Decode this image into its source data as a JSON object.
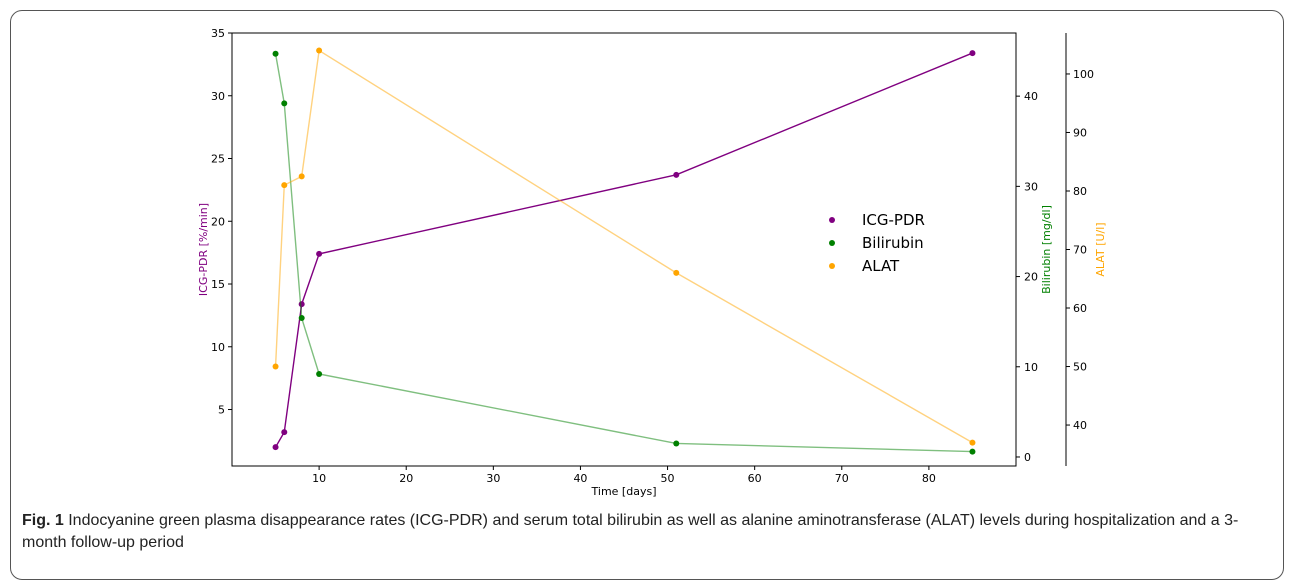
{
  "chart_data": {
    "type": "line",
    "xlabel": "Time [days]",
    "x_ticks": [
      10,
      20,
      30,
      40,
      50,
      60,
      70,
      80
    ],
    "xlim": [
      0,
      90
    ],
    "axes": {
      "left": {
        "label": "ICG-PDR [%/min]",
        "color": "#800080",
        "ylim": [
          0.5,
          35
        ],
        "ticks": [
          5,
          10,
          15,
          20,
          25,
          30,
          35
        ]
      },
      "right1": {
        "label": "Bilirubin [mg/dl]",
        "color": "#008000",
        "ylim": [
          -1,
          47
        ],
        "ticks": [
          0,
          10,
          20,
          30,
          40
        ]
      },
      "right2": {
        "label": "ALAT [U/l]",
        "color": "#FFA500",
        "ylim": [
          33,
          107
        ],
        "ticks": [
          40,
          50,
          60,
          70,
          80,
          90,
          100
        ]
      }
    },
    "series": [
      {
        "name": "ICG-PDR",
        "axis": "left",
        "color": "#800080",
        "line_alpha": 1.0,
        "x": [
          5,
          6,
          8,
          10,
          51,
          85
        ],
        "y": [
          2.0,
          3.2,
          13.4,
          17.4,
          23.7,
          33.4
        ]
      },
      {
        "name": "Bilirubin",
        "axis": "right1",
        "color": "#008000",
        "line_alpha": 0.5,
        "x": [
          5,
          6,
          8,
          10,
          51,
          85
        ],
        "y": [
          44.7,
          39.2,
          15.4,
          9.2,
          1.5,
          0.6
        ]
      },
      {
        "name": "ALAT",
        "axis": "right2",
        "color": "#FFA500",
        "line_alpha": 0.5,
        "x": [
          5,
          6,
          8,
          10,
          51,
          85
        ],
        "y": [
          50.0,
          81.0,
          82.5,
          104.0,
          66.0,
          37.0
        ]
      }
    ],
    "legend_placement": "center-right",
    "grid": false
  },
  "caption": {
    "label": "Fig. 1",
    "text": " Indocyanine green plasma disappearance rates (ICG-PDR) and serum total bilirubin as well as alanine aminotransferase (ALAT) levels during hospitalization and a 3-month follow-up period"
  }
}
